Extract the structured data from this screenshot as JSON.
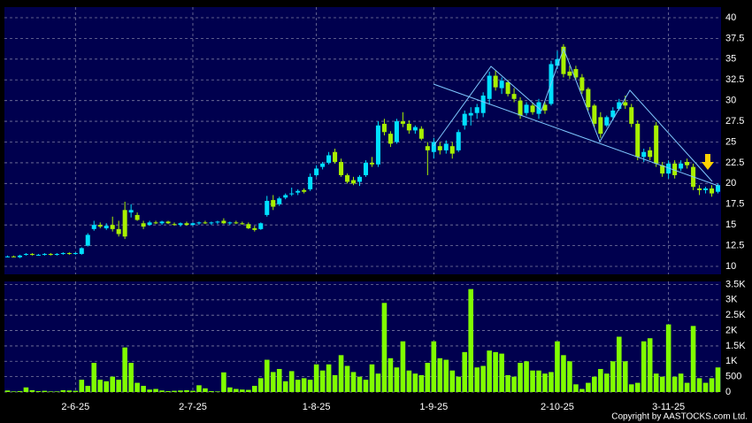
{
  "chart_data": {
    "type": "candlestick",
    "categories": [
      null,
      null,
      null,
      null,
      null,
      null,
      null,
      null,
      null,
      null,
      null,
      "2-6-25",
      null,
      null,
      null,
      null,
      null,
      null,
      null,
      null,
      null,
      null,
      null,
      null,
      null,
      null,
      null,
      null,
      null,
      null,
      "2-7-25",
      null,
      null,
      null,
      null,
      null,
      null,
      null,
      null,
      null,
      null,
      null,
      null,
      null,
      null,
      null,
      null,
      null,
      null,
      null,
      "1-8-25",
      null,
      null,
      null,
      null,
      null,
      null,
      null,
      null,
      null,
      null,
      null,
      null,
      null,
      null,
      null,
      null,
      null,
      null,
      "1-9-25",
      null,
      null,
      null,
      null,
      null,
      null,
      null,
      null,
      null,
      null,
      null,
      null,
      null,
      null,
      null,
      null,
      null,
      null,
      null,
      "2-10-25",
      null,
      null,
      null,
      null,
      null,
      null,
      null,
      null,
      null,
      null,
      null,
      null,
      null,
      null,
      null,
      null,
      null,
      "3-11-25",
      null,
      null,
      null,
      null,
      null,
      null,
      null,
      null
    ],
    "ohlc": [
      [
        11.2,
        11.3,
        11.1,
        11.2
      ],
      [
        11.2,
        11.3,
        11.1,
        11.1
      ],
      [
        11.1,
        11.4,
        11.0,
        11.3
      ],
      [
        11.4,
        11.6,
        11.3,
        11.5
      ],
      [
        11.5,
        11.6,
        11.3,
        11.4
      ],
      [
        11.4,
        11.5,
        11.3,
        11.4
      ],
      [
        11.4,
        11.6,
        11.3,
        11.5
      ],
      [
        11.5,
        11.6,
        11.3,
        11.4
      ],
      [
        11.4,
        11.6,
        11.3,
        11.5
      ],
      [
        11.5,
        11.7,
        11.4,
        11.6
      ],
      [
        11.6,
        11.7,
        11.4,
        11.5
      ],
      [
        11.5,
        11.7,
        11.4,
        11.6
      ],
      [
        11.5,
        12.3,
        11.4,
        12.2
      ],
      [
        12.5,
        14.0,
        12.4,
        13.8
      ],
      [
        14.5,
        15.5,
        14.3,
        15.0
      ],
      [
        15.0,
        15.3,
        14.6,
        14.8
      ],
      [
        14.6,
        15.2,
        14.4,
        14.9
      ],
      [
        15.0,
        16.0,
        14.2,
        14.5
      ],
      [
        14.5,
        15.5,
        13.6,
        13.9
      ],
      [
        16.8,
        17.8,
        13.3,
        13.6
      ],
      [
        16.5,
        17.5,
        15.9,
        16.8
      ],
      [
        16.2,
        16.5,
        15.5,
        15.6
      ],
      [
        15.2,
        15.5,
        14.5,
        14.8
      ],
      [
        15.0,
        15.5,
        14.9,
        15.3
      ],
      [
        15.3,
        15.5,
        15.1,
        15.2
      ],
      [
        15.2,
        15.5,
        15.0,
        15.4
      ],
      [
        15.4,
        15.5,
        15.1,
        15.2
      ],
      [
        15.1,
        15.3,
        14.9,
        15.0
      ],
      [
        15.0,
        15.3,
        14.8,
        15.2
      ],
      [
        15.2,
        15.4,
        14.9,
        15.0
      ],
      [
        15.0,
        15.3,
        14.9,
        15.2
      ],
      [
        15.2,
        15.4,
        15.0,
        15.3
      ],
      [
        15.3,
        15.5,
        15.1,
        15.2
      ],
      [
        15.2,
        15.4,
        15.0,
        15.3
      ],
      [
        15.3,
        15.5,
        15.1,
        15.4
      ],
      [
        15.5,
        15.8,
        15.1,
        15.2
      ],
      [
        15.2,
        15.4,
        15.0,
        15.3
      ],
      [
        15.3,
        15.5,
        15.1,
        15.2
      ],
      [
        15.2,
        15.4,
        15.0,
        15.1
      ],
      [
        15.1,
        15.3,
        14.5,
        14.6
      ],
      [
        14.6,
        14.9,
        14.2,
        14.4
      ],
      [
        14.5,
        15.3,
        14.4,
        15.2
      ],
      [
        16.2,
        18.5,
        16.0,
        17.9
      ],
      [
        18.0,
        18.6,
        16.8,
        17.2
      ],
      [
        17.5,
        18.4,
        17.3,
        18.2
      ],
      [
        18.3,
        18.8,
        18.1,
        18.6
      ],
      [
        18.7,
        19.5,
        18.5,
        18.8
      ],
      [
        18.9,
        19.3,
        18.6,
        19.1
      ],
      [
        19.2,
        19.4,
        18.8,
        19.0
      ],
      [
        19.3,
        21.2,
        19.1,
        20.8
      ],
      [
        21.0,
        22.2,
        20.8,
        21.8
      ],
      [
        22.0,
        22.6,
        21.7,
        22.4
      ],
      [
        22.5,
        23.8,
        22.3,
        23.4
      ],
      [
        23.8,
        24.2,
        22.4,
        22.6
      ],
      [
        22.6,
        23.0,
        20.8,
        21.0
      ],
      [
        21.0,
        21.2,
        20.0,
        20.2
      ],
      [
        20.4,
        20.8,
        19.8,
        20.0
      ],
      [
        20.2,
        21.0,
        19.7,
        20.8
      ],
      [
        21.0,
        22.8,
        20.8,
        22.5
      ],
      [
        22.5,
        23.2,
        22.0,
        22.3
      ],
      [
        22.3,
        27.5,
        22.0,
        27.0
      ],
      [
        27.2,
        27.8,
        25.8,
        26.2
      ],
      [
        26.0,
        26.3,
        24.4,
        24.8
      ],
      [
        25.0,
        27.8,
        24.8,
        27.5
      ],
      [
        27.5,
        28.6,
        26.8,
        27.2
      ],
      [
        27.2,
        27.6,
        26.0,
        26.4
      ],
      [
        26.4,
        27.0,
        26.0,
        26.8
      ],
      [
        26.6,
        26.9,
        25.2,
        25.4
      ],
      [
        24.5,
        25.0,
        21.0,
        24.0
      ],
      [
        23.8,
        25.5,
        23.0,
        25.0
      ],
      [
        24.5,
        25.0,
        23.5,
        24.0
      ],
      [
        24.0,
        25.2,
        23.6,
        24.8
      ],
      [
        24.5,
        25.0,
        23.0,
        23.6
      ],
      [
        24.0,
        26.5,
        23.8,
        26.2
      ],
      [
        27.0,
        28.8,
        26.5,
        28.4
      ],
      [
        28.2,
        29.2,
        27.0,
        28.5
      ],
      [
        28.5,
        29.6,
        27.8,
        29.2
      ],
      [
        28.5,
        31.0,
        28.0,
        30.6
      ],
      [
        30.2,
        33.5,
        29.5,
        33.0
      ],
      [
        33.0,
        33.6,
        31.2,
        31.6
      ],
      [
        31.5,
        32.8,
        30.8,
        32.4
      ],
      [
        32.2,
        32.5,
        30.5,
        30.8
      ],
      [
        30.8,
        31.5,
        29.8,
        30.2
      ],
      [
        30.0,
        30.4,
        27.8,
        28.2
      ],
      [
        28.5,
        29.8,
        28.2,
        29.5
      ],
      [
        29.4,
        29.8,
        28.3,
        28.6
      ],
      [
        28.4,
        30.2,
        27.8,
        29.8
      ],
      [
        29.5,
        29.8,
        28.4,
        28.8
      ],
      [
        29.6,
        34.8,
        29.4,
        34.4
      ],
      [
        34.2,
        36.0,
        33.8,
        35.0
      ],
      [
        36.5,
        36.8,
        32.8,
        33.2
      ],
      [
        33.5,
        34.2,
        32.6,
        33.0
      ],
      [
        33.8,
        34.2,
        32.5,
        32.8
      ],
      [
        32.8,
        33.2,
        30.8,
        31.2
      ],
      [
        31.4,
        31.6,
        28.8,
        29.2
      ],
      [
        29.4,
        29.6,
        26.8,
        27.2
      ],
      [
        28.0,
        28.6,
        25.5,
        26.0
      ],
      [
        27.0,
        28.2,
        26.8,
        28.0
      ],
      [
        28.0,
        29.2,
        27.6,
        28.8
      ],
      [
        29.0,
        30.2,
        28.8,
        29.8
      ],
      [
        29.8,
        30.6,
        29.0,
        29.4
      ],
      [
        29.2,
        29.6,
        26.8,
        27.2
      ],
      [
        27.2,
        27.6,
        22.8,
        23.2
      ],
      [
        23.2,
        24.2,
        22.6,
        23.8
      ],
      [
        24.0,
        24.4,
        22.8,
        23.2
      ],
      [
        27.0,
        27.4,
        22.0,
        22.4
      ],
      [
        22.2,
        22.6,
        20.8,
        21.2
      ],
      [
        21.2,
        22.8,
        20.6,
        22.4
      ],
      [
        22.4,
        22.8,
        20.6,
        21.0
      ],
      [
        21.8,
        22.8,
        21.5,
        22.4
      ],
      [
        22.6,
        23.0,
        21.8,
        22.2
      ],
      [
        22.0,
        22.4,
        19.2,
        19.6
      ],
      [
        19.4,
        19.8,
        18.6,
        19.2
      ],
      [
        19.2,
        19.6,
        18.8,
        19.4
      ],
      [
        19.4,
        19.8,
        18.4,
        18.8
      ],
      [
        19.0,
        20.0,
        18.8,
        19.8
      ]
    ],
    "volume": [
      50,
      20,
      30,
      150,
      60,
      30,
      40,
      20,
      20,
      60,
      50,
      40,
      400,
      200,
      950,
      400,
      350,
      500,
      400,
      1450,
      950,
      300,
      200,
      80,
      100,
      50,
      30,
      40,
      50,
      60,
      40,
      220,
      120,
      30,
      20,
      640,
      150,
      100,
      80,
      70,
      200,
      450,
      1050,
      650,
      750,
      350,
      680,
      400,
      450,
      400,
      900,
      700,
      900,
      550,
      1200,
      850,
      650,
      500,
      400,
      900,
      600,
      2900,
      1100,
      800,
      1650,
      700,
      600,
      550,
      950,
      1650,
      1100,
      1050,
      700,
      500,
      1300,
      3350,
      800,
      850,
      1350,
      1300,
      1250,
      550,
      500,
      950,
      1000,
      700,
      700,
      600,
      650,
      1650,
      1200,
      1000,
      250,
      100,
      300,
      500,
      750,
      600,
      1000,
      1800,
      1000,
      250,
      300,
      1650,
      1750,
      600,
      500,
      2200,
      500,
      600,
      300,
      2150,
      450,
      300,
      450,
      800
    ],
    "ylim": [
      9.04,
      41.28
    ],
    "yticks": [
      10,
      12.5,
      15,
      17.5,
      20,
      22.5,
      25,
      27.5,
      30,
      32.5,
      35,
      37.5,
      40
    ],
    "volume_ylim": [
      0,
      3600
    ],
    "volume_yticks": [
      0,
      500,
      {
        "value": 1000,
        "label": "1K"
      },
      {
        "value": 1500,
        "label": "1.5K"
      },
      {
        "value": 2000,
        "label": "2K"
      },
      {
        "value": 2500,
        "label": "2.5K"
      },
      {
        "value": 3000,
        "label": "3K"
      },
      {
        "value": 3500,
        "label": "3.5K"
      }
    ],
    "grid": true,
    "up_color": "#00e0ff",
    "down_color": "#a8f000",
    "volume_color": "#80ff00",
    "background": "#00004e",
    "credit": "Copyright by AASTOCKS.com Ltd."
  }
}
